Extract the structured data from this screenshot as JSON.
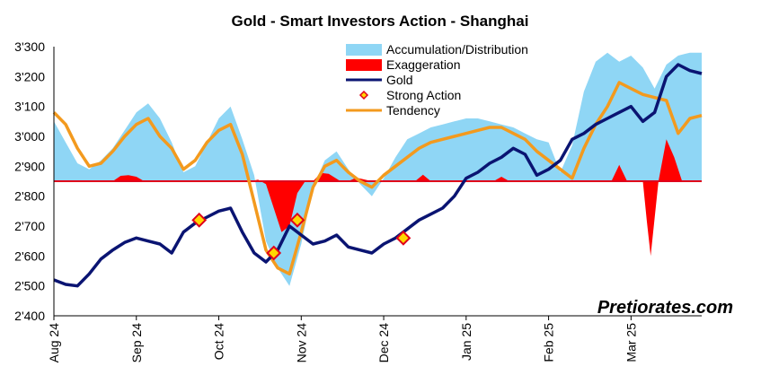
{
  "chart_data": {
    "type": "line",
    "title": "Gold - Smart Investors Action - Shanghai",
    "ylim": [
      2400,
      3300
    ],
    "yticks": [
      {
        "value": 3300,
        "label": "3'300"
      },
      {
        "value": 3200,
        "label": "3'200"
      },
      {
        "value": 3100,
        "label": "3'100"
      },
      {
        "value": 3000,
        "label": "3'000"
      },
      {
        "value": 2900,
        "label": "2'900"
      },
      {
        "value": 2800,
        "label": "2'800"
      },
      {
        "value": 2700,
        "label": "2'700"
      },
      {
        "value": 2600,
        "label": "2'600"
      },
      {
        "value": 2500,
        "label": "2'500"
      },
      {
        "value": 2400,
        "label": "2'400"
      }
    ],
    "xlim": [
      0,
      165
    ],
    "xticks": [
      {
        "value": 0,
        "label": "Aug 24"
      },
      {
        "value": 21,
        "label": "Sep 24"
      },
      {
        "value": 42,
        "label": "Oct 24"
      },
      {
        "value": 63,
        "label": "Nov 24"
      },
      {
        "value": 84,
        "label": "Dec 24"
      },
      {
        "value": 105,
        "label": "Jan 25"
      },
      {
        "value": 126,
        "label": "Feb 25"
      },
      {
        "value": 147,
        "label": "Mar 25"
      }
    ],
    "baseline": 2850,
    "legend": {
      "position": "top-right",
      "items": [
        {
          "label": "Accumulation/Distribution",
          "color": "#8fd6f5",
          "kind": "area"
        },
        {
          "label": "Exaggeration",
          "color": "#ff0000",
          "kind": "area"
        },
        {
          "label": "Gold",
          "color": "#0a1472",
          "kind": "line"
        },
        {
          "label": "Strong Action",
          "color": "#ffd700",
          "kind": "marker"
        },
        {
          "label": "Tendency",
          "color": "#f39a1e",
          "kind": "line"
        }
      ]
    },
    "series": [
      {
        "name": "Accumulation/Distribution",
        "color": "#8fd6f5",
        "x": [
          0,
          3,
          6,
          9,
          12,
          15,
          18,
          21,
          24,
          27,
          30,
          33,
          36,
          39,
          42,
          45,
          48,
          51,
          54,
          57,
          60,
          63,
          66,
          69,
          72,
          75,
          78,
          81,
          84,
          87,
          90,
          93,
          96,
          99,
          102,
          105,
          108,
          111,
          114,
          117,
          120,
          123,
          126,
          129,
          132,
          135,
          138,
          141,
          144,
          147,
          150,
          153,
          156,
          159,
          162,
          165
        ],
        "values": [
          3050,
          2980,
          2910,
          2890,
          2920,
          2960,
          3020,
          3080,
          3110,
          3060,
          2980,
          2880,
          2900,
          2980,
          3060,
          3100,
          2990,
          2870,
          2650,
          2560,
          2500,
          2640,
          2830,
          2920,
          2950,
          2890,
          2840,
          2800,
          2860,
          2930,
          2990,
          3010,
          3030,
          3040,
          3050,
          3060,
          3060,
          3050,
          3040,
          3030,
          3010,
          2990,
          2980,
          2880,
          2970,
          3150,
          3250,
          3280,
          3250,
          3270,
          3230,
          3160,
          3240,
          3270,
          3280,
          3280
        ]
      },
      {
        "name": "Exaggeration",
        "color": "#ff0000",
        "x": [
          0,
          15,
          17,
          19,
          21,
          23,
          50,
          52,
          54,
          56,
          58,
          60,
          62,
          64,
          66,
          68,
          70,
          73,
          75,
          77,
          81,
          92,
          94,
          96,
          112,
          114,
          116,
          142,
          144,
          146,
          148,
          150,
          151,
          152,
          154,
          156,
          158,
          160,
          165
        ],
        "values": [
          2850,
          2850,
          2868,
          2870,
          2865,
          2850,
          2850,
          2855,
          2840,
          2760,
          2680,
          2700,
          2810,
          2850,
          2850,
          2878,
          2875,
          2850,
          2850,
          2862,
          2850,
          2850,
          2872,
          2850,
          2850,
          2865,
          2850,
          2850,
          2905,
          2850,
          2850,
          2850,
          2720,
          2600,
          2850,
          2990,
          2930,
          2850,
          2850
        ]
      },
      {
        "name": "Gold",
        "color": "#0a1472",
        "x": [
          0,
          3,
          6,
          9,
          12,
          15,
          18,
          21,
          24,
          27,
          30,
          33,
          36,
          39,
          42,
          45,
          48,
          51,
          54,
          57,
          60,
          63,
          66,
          69,
          72,
          75,
          78,
          81,
          84,
          87,
          90,
          93,
          96,
          99,
          102,
          105,
          108,
          111,
          114,
          117,
          120,
          123,
          126,
          129,
          132,
          135,
          138,
          141,
          144,
          147,
          150,
          153,
          156,
          159,
          162,
          165
        ],
        "values": [
          2520,
          2505,
          2500,
          2540,
          2590,
          2620,
          2645,
          2660,
          2650,
          2640,
          2610,
          2680,
          2710,
          2730,
          2750,
          2760,
          2680,
          2610,
          2580,
          2620,
          2700,
          2670,
          2640,
          2650,
          2670,
          2630,
          2620,
          2610,
          2640,
          2660,
          2690,
          2720,
          2740,
          2760,
          2800,
          2860,
          2880,
          2910,
          2930,
          2960,
          2940,
          2870,
          2890,
          2920,
          2990,
          3010,
          3040,
          3060,
          3080,
          3100,
          3050,
          3080,
          3200,
          3240,
          3220,
          3210
        ]
      },
      {
        "name": "Tendency",
        "color": "#f39a1e",
        "x": [
          0,
          3,
          6,
          9,
          12,
          15,
          18,
          21,
          24,
          27,
          30,
          33,
          36,
          39,
          42,
          45,
          48,
          51,
          54,
          57,
          60,
          63,
          66,
          69,
          72,
          75,
          78,
          81,
          84,
          87,
          90,
          93,
          96,
          99,
          102,
          105,
          108,
          111,
          114,
          117,
          120,
          123,
          126,
          129,
          132,
          135,
          138,
          141,
          144,
          147,
          150,
          153,
          156,
          159,
          162,
          165
        ],
        "values": [
          3080,
          3040,
          2960,
          2900,
          2910,
          2950,
          3000,
          3040,
          3060,
          3000,
          2960,
          2890,
          2920,
          2980,
          3020,
          3040,
          2940,
          2780,
          2620,
          2560,
          2540,
          2680,
          2830,
          2900,
          2920,
          2880,
          2850,
          2830,
          2870,
          2900,
          2930,
          2960,
          2980,
          2990,
          3000,
          3010,
          3020,
          3030,
          3030,
          3010,
          2990,
          2950,
          2920,
          2890,
          2860,
          2960,
          3040,
          3100,
          3180,
          3160,
          3140,
          3130,
          3120,
          3010,
          3060,
          3070
        ]
      }
    ],
    "strong_action": {
      "name": "Strong Action",
      "color": "#ffd700",
      "stroke": "#e0001b",
      "points": [
        {
          "x": 37,
          "y": 2720
        },
        {
          "x": 56,
          "y": 2610
        },
        {
          "x": 62,
          "y": 2720
        },
        {
          "x": 89,
          "y": 2660
        }
      ]
    },
    "watermark": "Pretiorates.com"
  }
}
